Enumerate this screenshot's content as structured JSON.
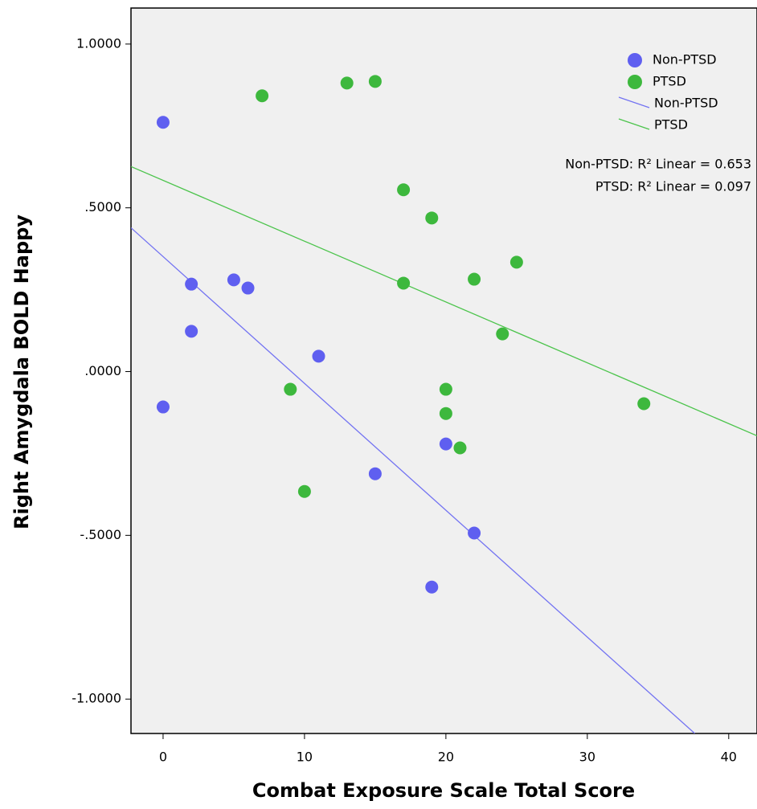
{
  "chart_data": {
    "type": "scatter",
    "xlabel": "Combat Exposure Scale Total Score",
    "ylabel": "Right Amygdala BOLD Happy",
    "xlim": [
      -2.27,
      42
    ],
    "ylim": [
      -1.105,
      1.11
    ],
    "xticks": [
      0,
      10,
      20,
      30,
      40
    ],
    "yticks": [
      {
        "value": 1,
        "label": "1.0000"
      },
      {
        "value": 0.5,
        "label": ".5000"
      },
      {
        "value": 0,
        "label": ".0000"
      },
      {
        "value": -0.5,
        "label": "-.5000"
      },
      {
        "value": -1,
        "label": "-1.0000"
      }
    ],
    "series": [
      {
        "name": "Non-PTSD",
        "color": "#5f5ff0",
        "x": [
          0,
          0,
          2,
          2,
          5,
          6,
          11,
          15,
          20,
          22,
          19
        ],
        "values": [
          0.761,
          -0.108,
          0.267,
          0.123,
          0.28,
          0.255,
          0.047,
          -0.312,
          -0.221,
          -0.493,
          -0.658
        ]
      },
      {
        "name": "PTSD",
        "color": "#3db83d",
        "x": [
          7,
          13,
          15,
          17,
          19,
          25,
          17,
          22,
          24,
          9,
          20,
          20,
          21,
          10,
          34
        ],
        "values": [
          0.842,
          0.881,
          0.886,
          0.555,
          0.469,
          0.334,
          0.27,
          0.282,
          0.115,
          -0.054,
          -0.054,
          -0.128,
          -0.233,
          -0.366,
          -0.098
        ]
      }
    ],
    "fit_lines": [
      {
        "name": "Non-PTSD",
        "color": "#7373f2",
        "x": [
          -2.27,
          37.6
        ],
        "values": [
          0.439,
          -1.105
        ]
      },
      {
        "name": "PTSD",
        "color": "#4cc44c",
        "x": [
          -2.27,
          42
        ],
        "values": [
          0.626,
          -0.196
        ]
      }
    ],
    "annotations": [
      "Non-PTSD: R² Linear = 0.653",
      "PTSD: R² Linear = 0.097"
    ]
  }
}
